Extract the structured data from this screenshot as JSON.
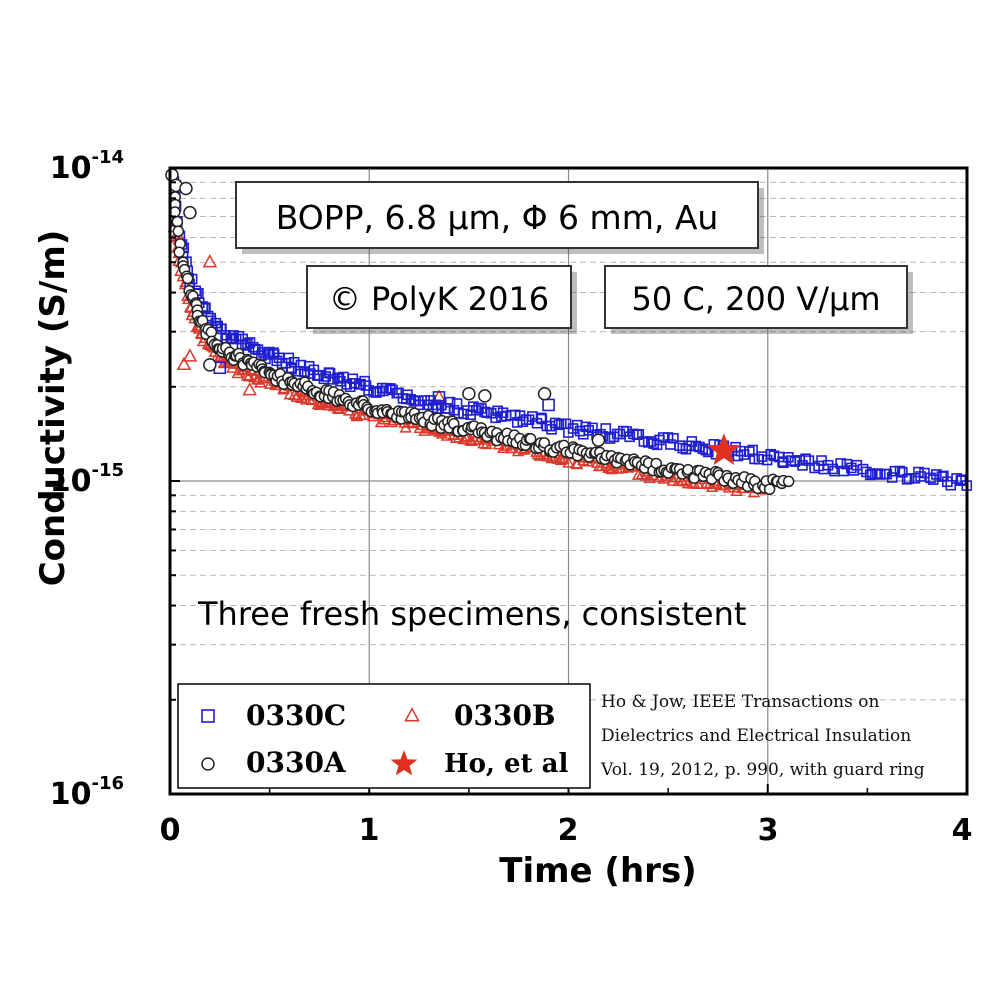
{
  "chart_data": {
    "type": "scatter",
    "xlabel": "Time (hrs)",
    "ylabel": "Conductivity (S/m)",
    "xlim": [
      0,
      4
    ],
    "ylim": [
      1e-16,
      1e-14
    ],
    "yscale": "log",
    "grid": true,
    "x_ticks": [
      "0",
      "1",
      "2",
      "3",
      "4"
    ],
    "y_ticks": [
      {
        "base": "10",
        "exp": "-16"
      },
      {
        "base": "10",
        "exp": "-15"
      },
      {
        "base": "10",
        "exp": "-14"
      }
    ],
    "annotations": {
      "material": "BOPP, 6.8 μm, Φ 6 mm, Au",
      "copyright": "© PolyK 2016",
      "conditions": "50 C, 200 V/μm",
      "note": "Three fresh specimens, consistent"
    },
    "citation": [
      "Ho & Jow, IEEE Transactions on",
      "Dielectrics and Electrical Insulation",
      "Vol. 19, 2012, p. 990, with guard ring"
    ],
    "legend": [
      {
        "label": "0330C",
        "marker": "square",
        "color": "#1f1fd0"
      },
      {
        "label": "0330B",
        "marker": "triangle",
        "color": "#d93a2b"
      },
      {
        "label": "0330A",
        "marker": "circle",
        "color": "#222222"
      },
      {
        "label": "Ho, et al",
        "marker": "star",
        "color": "#e0301e"
      }
    ],
    "series": [
      {
        "name": "0330C",
        "marker": "square",
        "color": "#1f1fd0",
        "x": [
          0.02,
          0.05,
          0.1,
          0.15,
          0.2,
          0.3,
          0.5,
          0.75,
          1.0,
          1.25,
          1.5,
          1.75,
          2.0,
          2.25,
          2.5,
          2.75,
          3.0,
          3.25,
          3.5,
          3.75,
          4.0
        ],
        "y": [
          9e-15,
          6e-15,
          4.5e-15,
          3.8e-15,
          3.35e-15,
          2.9e-15,
          2.5e-15,
          2.2e-15,
          2e-15,
          1.8e-15,
          1.68e-15,
          1.58e-15,
          1.48e-15,
          1.4e-15,
          1.33e-15,
          1.26e-15,
          1.2e-15,
          1.13e-15,
          1.08e-15,
          1.03e-15,
          9.9e-16
        ],
        "outliers": {
          "x": [
            0.25,
            1.35,
            1.9
          ],
          "y": [
            2.3e-15,
            1.85e-15,
            1.75e-15
          ]
        }
      },
      {
        "name": "0330B",
        "marker": "triangle",
        "color": "#d93a2b",
        "x": [
          0.02,
          0.05,
          0.1,
          0.15,
          0.2,
          0.3,
          0.5,
          0.75,
          1.0,
          1.25,
          1.5,
          1.75,
          2.0,
          2.25,
          2.5,
          2.75,
          3.0
        ],
        "y": [
          6.5e-15,
          5e-15,
          3.6e-15,
          3e-15,
          2.7e-15,
          2.35e-15,
          2.05e-15,
          1.8e-15,
          1.62e-15,
          1.5e-15,
          1.38e-15,
          1.28e-15,
          1.18e-15,
          1.1e-15,
          1.03e-15,
          9.7e-16,
          9.3e-16
        ],
        "outliers": {
          "x": [
            0.05,
            0.1,
            0.2,
            0.4,
            0.07,
            1.35
          ],
          "y": [
            5.9e-15,
            2.5e-15,
            5e-15,
            1.95e-15,
            2.35e-15,
            1.85e-15
          ]
        }
      },
      {
        "name": "0330A",
        "marker": "circle",
        "color": "#222222",
        "x": [
          0.02,
          0.05,
          0.1,
          0.15,
          0.2,
          0.3,
          0.5,
          0.75,
          1.0,
          1.25,
          1.5,
          1.75,
          2.0,
          2.25,
          2.5,
          2.75,
          3.0,
          3.1
        ],
        "y": [
          8e-15,
          5.5e-15,
          4e-15,
          3.3e-15,
          2.9e-15,
          2.55e-15,
          2.2e-15,
          1.92e-15,
          1.72e-15,
          1.58e-15,
          1.46e-15,
          1.35e-15,
          1.25e-15,
          1.16e-15,
          1.09e-15,
          1.03e-15,
          9.7e-16,
          9.9e-16
        ],
        "outliers": {
          "x": [
            0.01,
            0.03,
            0.08,
            0.1,
            0.2,
            1.5,
            1.58,
            1.88,
            2.15
          ],
          "y": [
            9.5e-15,
            8.8e-15,
            8.6e-15,
            7.2e-15,
            2.35e-15,
            1.9e-15,
            1.87e-15,
            1.9e-15,
            1.35e-15
          ]
        }
      },
      {
        "name": "Ho, et al",
        "marker": "star",
        "color": "#e0301e",
        "x": [
          2.78
        ],
        "y": [
          1.25e-15
        ]
      }
    ]
  }
}
